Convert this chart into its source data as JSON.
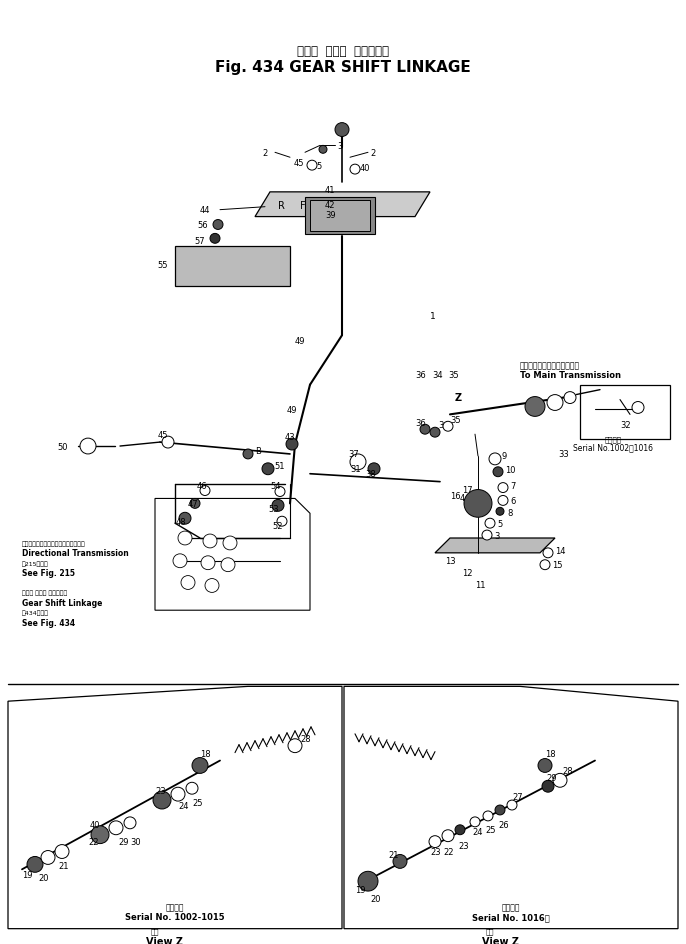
{
  "title_jp": "ギヤー  シフト  リンケージ",
  "title_en": "Fig. 434 GEAR SHIFT LINKAGE",
  "bg_color": "#ffffff",
  "line_color": "#000000",
  "fig_width": 6.86,
  "fig_height": 9.45,
  "dpi": 100,
  "transmission_note_lines": [
    "メイントランスミッションへ",
    "To Main Transmission"
  ],
  "ref_serial_jp": "適用番号",
  "ref_serial": "Serial No.1002～1016",
  "dir_trans_lines": [
    "ディレクショナルトランスミッション",
    "Directional Transmission",
    "第215図参照",
    "See Fig. 215"
  ],
  "gear_shift_lines": [
    "ギヤー シフト リンケージ",
    "Gear Shift Linkage",
    "第434図参照",
    "See Fig. 434"
  ],
  "panel_left_serial_jp": "適用番号",
  "panel_left_serial": "Serial No. 1002-1015",
  "panel_right_serial_jp": "適用番号",
  "panel_right_serial": "Serial No. 1016～",
  "view_jp": "矢印",
  "view_en": "View Z"
}
